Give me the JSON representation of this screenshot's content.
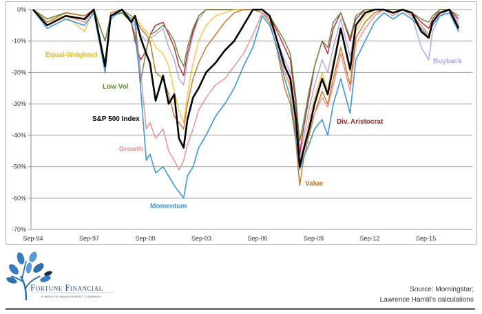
{
  "chart_data": {
    "type": "line",
    "title": "",
    "subtitle": "",
    "xlabel": "",
    "ylabel": "",
    "ylim": [
      -70,
      0
    ],
    "yticks": [
      "0%",
      "-10%",
      "-20%",
      "-30%",
      "-40%",
      "-50%",
      "-60%",
      "-70%"
    ],
    "xticks": [
      "Sep-94",
      "Sep-97",
      "Sep-00",
      "Sep-03",
      "Sep-06",
      "Sep-09",
      "Sep-12",
      "Sep-15"
    ],
    "grid": true,
    "legend": "inline labels",
    "x": [
      1994.75,
      1995.5,
      1996.5,
      1997.5,
      1998.0,
      1998.6,
      1998.9,
      1999.5,
      2000.0,
      2000.2,
      2000.5,
      2000.8,
      2001.0,
      2001.3,
      2001.7,
      2002.0,
      2002.3,
      2002.55,
      2002.8,
      2003.0,
      2003.3,
      2003.6,
      2004.0,
      2004.5,
      2005.0,
      2005.5,
      2006.0,
      2006.5,
      2007.0,
      2007.4,
      2007.8,
      2008.2,
      2008.5,
      2008.8,
      2009.0,
      2009.2,
      2009.5,
      2009.8,
      2010.2,
      2010.5,
      2010.8,
      2011.2,
      2011.7,
      2012.0,
      2012.5,
      2013.0,
      2013.5,
      2014.0,
      2014.5,
      2015.0,
      2015.5,
      2015.9,
      2016.1,
      2016.5,
      2017.0,
      2017.5
    ],
    "series": [
      {
        "name": "S&P 500 Index",
        "color": "#000000",
        "width": 2.6,
        "values": [
          0,
          -5,
          -2,
          -3,
          0,
          -18,
          -2,
          0,
          -4,
          -2,
          -9,
          -14,
          -17,
          -29,
          -21,
          -30,
          -27,
          -41,
          -44,
          -35,
          -28,
          -25,
          -20,
          -17,
          -13,
          -10,
          -5,
          0,
          0,
          -2,
          -10,
          -18,
          -22,
          -35,
          -50,
          -45,
          -38,
          -30,
          -22,
          -27,
          -18,
          -6,
          -19,
          -5,
          -1,
          0,
          0,
          -1,
          0,
          -1,
          -7,
          -9,
          -4,
          -1,
          0,
          -6
        ]
      },
      {
        "name": "Momentum",
        "color": "#3d95d8",
        "width": 1.6,
        "values": [
          0,
          -6,
          -3,
          -5,
          -1,
          -20,
          -3,
          0,
          -3,
          -4,
          -25,
          -48,
          -46,
          -52,
          -50,
          -53,
          -56,
          -58,
          -60,
          -53,
          -50,
          -44,
          -40,
          -34,
          -30,
          -25,
          -18,
          -12,
          -2,
          -5,
          -12,
          -22,
          -28,
          -40,
          -51,
          -47,
          -43,
          -38,
          -35,
          -40,
          -30,
          -22,
          -33,
          -16,
          -10,
          -4,
          -1,
          -3,
          -1,
          -3,
          -6,
          -9,
          -5,
          -2,
          -1,
          -7
        ]
      },
      {
        "name": "Growth",
        "color": "#ef8b8b",
        "width": 1.4,
        "values": [
          0,
          -5,
          -2,
          -4,
          0,
          -19,
          -2,
          0,
          -3,
          -3,
          -20,
          -38,
          -36,
          -41,
          -38,
          -45,
          -48,
          -51,
          -48,
          -43,
          -38,
          -32,
          -28,
          -24,
          -22,
          -18,
          -14,
          -8,
          -1,
          -3,
          -10,
          -20,
          -24,
          -36,
          -48,
          -44,
          -38,
          -33,
          -28,
          -31,
          -24,
          -14,
          -26,
          -11,
          -6,
          -2,
          0,
          -2,
          0,
          -2,
          -5,
          -8,
          -4,
          -1,
          0,
          -5
        ]
      },
      {
        "name": "Value",
        "color": "#c8731f",
        "width": 1.4,
        "values": [
          0,
          -4,
          -1,
          -2,
          0,
          -17,
          -1,
          0,
          -2,
          -3,
          -6,
          -8,
          -10,
          -20,
          -22,
          -27,
          -34,
          -36,
          -38,
          -30,
          -22,
          -17,
          -12,
          -8,
          -4,
          -1,
          0,
          0,
          -1,
          -4,
          -13,
          -25,
          -30,
          -42,
          -56,
          -48,
          -40,
          -33,
          -26,
          -30,
          -22,
          -12,
          -24,
          -9,
          -4,
          -1,
          0,
          -1,
          0,
          -2,
          -5,
          -8,
          -4,
          -1,
          0,
          -6
        ]
      },
      {
        "name": "Equal-Weighted",
        "color": "#f4c542",
        "width": 1.4,
        "values": [
          0,
          -4,
          -2,
          -7,
          0,
          -18,
          -2,
          0,
          -3,
          -2,
          -5,
          -7,
          -8,
          -12,
          -14,
          -18,
          -26,
          -32,
          -36,
          -27,
          -17,
          -10,
          -5,
          -2,
          -1,
          0,
          0,
          0,
          -1,
          -3,
          -10,
          -20,
          -25,
          -38,
          -49,
          -44,
          -35,
          -28,
          -20,
          -26,
          -16,
          -6,
          -20,
          -7,
          -2,
          0,
          0,
          -1,
          0,
          -2,
          -6,
          -8,
          -4,
          -1,
          0,
          -5
        ]
      },
      {
        "name": "Low Vol",
        "color": "#5f8a3c",
        "width": 1.4,
        "values": [
          0,
          -3,
          -1,
          -2,
          0,
          -10,
          -2,
          -1,
          -4,
          -8,
          -23,
          -13,
          -8,
          -7,
          -5,
          -7,
          -10,
          -15,
          -18,
          -12,
          -6,
          -2,
          0,
          0,
          0,
          0,
          0,
          0,
          0,
          -2,
          -6,
          -10,
          -14,
          -28,
          -42,
          -36,
          -26,
          -18,
          -10,
          -12,
          -4,
          -1,
          -9,
          -2,
          0,
          0,
          0,
          0,
          0,
          -1,
          -3,
          -4,
          -2,
          0,
          0,
          -2
        ]
      },
      {
        "name": "Div. Aristocrat",
        "color": "#c0202e",
        "width": 1.4,
        "values": [
          0,
          -3,
          -1,
          -2,
          0,
          -10,
          -2,
          -1,
          -4,
          -10,
          -16,
          -13,
          -8,
          -5,
          -4,
          -8,
          -12,
          -18,
          -21,
          -14,
          -7,
          -2,
          0,
          0,
          0,
          0,
          0,
          0,
          0,
          -2,
          -7,
          -12,
          -16,
          -30,
          -46,
          -38,
          -28,
          -18,
          -10,
          -14,
          -6,
          -1,
          -10,
          -3,
          0,
          0,
          0,
          0,
          0,
          -1,
          -4,
          -6,
          -3,
          0,
          0,
          -3
        ]
      },
      {
        "name": "Buyback",
        "color": "#a9a3ec",
        "width": 1.4,
        "values": [
          0,
          -4,
          -2,
          -3,
          0,
          -20,
          -2,
          0,
          -4,
          -5,
          -8,
          -10,
          -9,
          -8,
          -6,
          -12,
          -16,
          -22,
          -24,
          -16,
          -8,
          -3,
          0,
          0,
          0,
          0,
          0,
          0,
          0,
          -3,
          -10,
          -16,
          -20,
          -33,
          -47,
          -41,
          -32,
          -24,
          -16,
          -20,
          -12,
          -3,
          -15,
          -5,
          -1,
          0,
          0,
          -1,
          0,
          -2,
          -12,
          -16,
          -7,
          -2,
          0,
          -4
        ]
      }
    ],
    "annotations": [
      {
        "text": "Equal-Weighted",
        "series": "Equal-Weighted"
      },
      {
        "text": "Low Vol",
        "series": "Low Vol"
      },
      {
        "text": "S&P 500 Index",
        "series": "S&P 500 Index"
      },
      {
        "text": "Growth",
        "series": "Growth"
      },
      {
        "text": "Momentum",
        "series": "Momentum"
      },
      {
        "text": "Value",
        "series": "Value"
      },
      {
        "text": "Div. Aristocrat",
        "series": "Div. Aristocrat"
      },
      {
        "text": "Buyback",
        "series": "Buyback"
      }
    ]
  },
  "labels": {
    "equal_weighted": "Equal-Weighted",
    "low_vol": "Low Vol",
    "sp500": "S&P 500 Index",
    "growth": "Growth",
    "momentum": "Momentum",
    "value": "Value",
    "div_aristocrat": "Div. Aristocrat",
    "buyback": "Buyback"
  },
  "colors": {
    "equal_weighted": "#e8b92c",
    "low_vol": "#5f8a3c",
    "sp500": "#000000",
    "growth": "#ef8b8b",
    "momentum": "#3d95d8",
    "value": "#c8731f",
    "div_aristocrat": "#a3202c",
    "buyback": "#a9a3ec",
    "brand": "#2c4e7a"
  },
  "footer": {
    "brand_name": "Fortune Financial",
    "brand_tagline": "A WEALTH MANAGEMENT COMPANY",
    "source_line1": "Source:  Morningstar;",
    "source_line2": "Lawrence Hamtil's calculations"
  }
}
